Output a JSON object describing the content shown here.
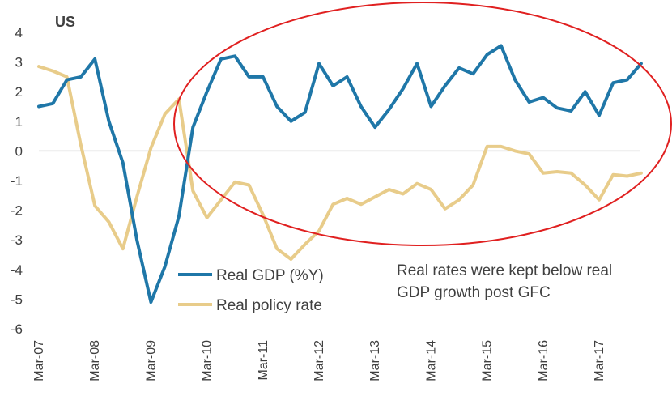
{
  "chart_data": {
    "type": "line",
    "title": "US",
    "ylim": [
      -6,
      4
    ],
    "yticks": [
      "4",
      "3",
      "2",
      "1",
      "0",
      "-1",
      "-2",
      "-3",
      "-4",
      "-5",
      "-6"
    ],
    "x_labels": [
      "Mar-07",
      "Mar-08",
      "Mar-09",
      "Mar-10",
      "Mar-11",
      "Mar-12",
      "Mar-13",
      "Mar-14",
      "Mar-15",
      "Mar-16",
      "Mar-17"
    ],
    "x": [
      "Mar-07",
      "Jun-07",
      "Sep-07",
      "Dec-07",
      "Mar-08",
      "Jun-08",
      "Sep-08",
      "Dec-08",
      "Mar-09",
      "Jun-09",
      "Sep-09",
      "Dec-09",
      "Mar-10",
      "Jun-10",
      "Sep-10",
      "Dec-10",
      "Mar-11",
      "Jun-11",
      "Sep-11",
      "Dec-11",
      "Mar-12",
      "Jun-12",
      "Sep-12",
      "Dec-12",
      "Mar-13",
      "Jun-13",
      "Sep-13",
      "Dec-13",
      "Mar-14",
      "Jun-14",
      "Sep-14",
      "Dec-14",
      "Mar-15",
      "Jun-15",
      "Sep-15",
      "Dec-15",
      "Mar-16",
      "Jun-16",
      "Sep-16",
      "Dec-16",
      "Mar-17",
      "Jun-17",
      "Sep-17",
      "Dec-17"
    ],
    "series": [
      {
        "name": "Real GDP (%Y)",
        "color": "#1f77a8",
        "values": [
          1.5,
          1.6,
          2.4,
          2.5,
          3.1,
          1.0,
          -0.4,
          -3.0,
          -5.1,
          -3.9,
          -2.2,
          0.8,
          2.0,
          3.1,
          3.2,
          2.5,
          2.5,
          1.5,
          1.0,
          1.3,
          2.95,
          2.2,
          2.5,
          1.5,
          0.8,
          1.4,
          2.1,
          2.95,
          1.5,
          2.2,
          2.8,
          2.6,
          3.25,
          3.55,
          2.4,
          1.65,
          1.8,
          1.45,
          1.35,
          2.0,
          1.2,
          2.3,
          2.4,
          2.95
        ]
      },
      {
        "name": "Real policy rate",
        "color": "#e8cc8a",
        "values": [
          2.85,
          2.7,
          2.5,
          0.2,
          -1.85,
          -2.4,
          -3.3,
          -1.55,
          0.1,
          1.25,
          1.75,
          -1.35,
          -2.25,
          -1.65,
          -1.05,
          -1.15,
          -2.15,
          -3.3,
          -3.65,
          -3.15,
          -2.7,
          -1.8,
          -1.6,
          -1.8,
          -1.55,
          -1.3,
          -1.45,
          -1.1,
          -1.3,
          -1.95,
          -1.65,
          -1.15,
          0.15,
          0.15,
          0.0,
          -0.1,
          -0.75,
          -0.7,
          -0.75,
          -1.15,
          -1.65,
          -0.8,
          -0.85,
          -0.75
        ]
      }
    ],
    "legend": {
      "position": "lower-center",
      "entries": [
        "Real GDP (%Y)",
        "Real policy rate"
      ]
    },
    "annotation": {
      "lines": [
        "Real rates were kept below real",
        "GDP growth post GFC"
      ],
      "ellipse_color": "#e02020"
    },
    "grid": false
  }
}
